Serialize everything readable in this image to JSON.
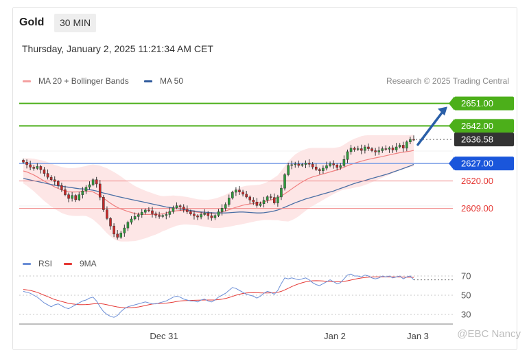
{
  "header": {
    "symbol": "Gold",
    "timeframe": "30 MIN",
    "datetime": "Thursday, January 2, 2025 11:21:34 AM CET"
  },
  "credit": "Research © 2025 Trading Central",
  "watermark": "@EBC Nancy",
  "colors": {
    "bollinger": "#f4a6a6",
    "ma20": "#f08080",
    "ma50": "#4a6fa5",
    "green": "#4caf1a",
    "blue": "#1a56db",
    "red": "#e53935",
    "current": "#333333",
    "rsi": "#6b8ed6",
    "ma9": "#e53935",
    "arrow": "#2a5fa8"
  },
  "chart_data": [
    {
      "type": "line",
      "subtype": "candlestick",
      "legend": [
        "MA 20 + Bollinger Bands",
        "MA 50"
      ],
      "x_tick_labels": [
        "Dec 31",
        "Jan 2",
        "Jan 3"
      ],
      "levels": [
        {
          "value": 2651.0,
          "label": "2651.00",
          "style": "green-filled"
        },
        {
          "value": 2642.0,
          "label": "2642.00",
          "style": "green-filled"
        },
        {
          "value": 2636.58,
          "label": "2636.58",
          "style": "current"
        },
        {
          "value": 2627.0,
          "label": "2627.00",
          "style": "blue-filled"
        },
        {
          "value": 2620.0,
          "label": "2620.00",
          "style": "red-text"
        },
        {
          "value": 2609.0,
          "label": "2609.00",
          "style": "red-text"
        }
      ],
      "ylim": [
        2593,
        2655
      ],
      "close": [
        2627.5,
        2626.5,
        2625.5,
        2625,
        2625.8,
        2624.5,
        2623,
        2621.5,
        2620.5,
        2619.8,
        2618.2,
        2616.5,
        2614.5,
        2613,
        2614.2,
        2612.5,
        2614.5,
        2616,
        2617.5,
        2618.5,
        2620.5,
        2618.8,
        2613.5,
        2608.5,
        2605,
        2602,
        2598.8,
        2597.5,
        2599.2,
        2601.2,
        2603.5,
        2604.8,
        2605.8,
        2606.5,
        2607.5,
        2608.4,
        2608.1,
        2606.9,
        2606.3,
        2605.8,
        2606.2,
        2606.6,
        2607.8,
        2609.3,
        2610.1,
        2609.6,
        2608.6,
        2607.7,
        2606.8,
        2606.1,
        2605.6,
        2606.6,
        2607.1,
        2606.1,
        2605.3,
        2606.2,
        2607.7,
        2609.1,
        2610.6,
        2613.2,
        2615.5,
        2616.4,
        2615.6,
        2614.7,
        2613.6,
        2612.4,
        2611.6,
        2610.2,
        2610.9,
        2612.3,
        2613.7,
        2613.4,
        2611.2,
        2613.6,
        2617.1,
        2622.5,
        2626.2,
        2626.5,
        2626.8,
        2626.2,
        2626.6,
        2627.1,
        2626.7,
        2625.6,
        2624.6,
        2624.1,
        2625.1,
        2626.1,
        2626.9,
        2626.4,
        2625.4,
        2626.1,
        2628.6,
        2631.7,
        2633.1,
        2632.6,
        2632.9,
        2632.2,
        2633.6,
        2632.9,
        2632.1,
        2631.6,
        2632.1,
        2632.9,
        2632.7,
        2633.2,
        2632.4,
        2633.6,
        2634.3,
        2633.1,
        2635.6,
        2636.6,
        2636.58
      ],
      "ma20": [
        2624,
        2623.6,
        2623,
        2622.4,
        2621.6,
        2620.8,
        2620,
        2619.2,
        2618.4,
        2617.6,
        2617,
        2616.4,
        2616,
        2615.7,
        2615.6,
        2615.6,
        2615.7,
        2615.9,
        2616,
        2615.9,
        2615.6,
        2614.9,
        2614.1,
        2613.1,
        2612.1,
        2611.1,
        2610.2,
        2609.4,
        2608.8,
        2608.3,
        2607.8,
        2607.4,
        2607,
        2606.8,
        2606.7,
        2606.6,
        2606.6,
        2606.6,
        2606.6,
        2606.7,
        2606.9,
        2607.2,
        2607.6,
        2607.9,
        2608.1,
        2608.2,
        2608.2,
        2608.1,
        2607.9,
        2607.7,
        2607.5,
        2607.3,
        2607.1,
        2607,
        2607,
        2607.1,
        2607.3,
        2607.6,
        2608,
        2608.5,
        2609,
        2609.5,
        2609.9,
        2610.3,
        2610.6,
        2610.8,
        2611,
        2611.2,
        2611.4,
        2611.7,
        2612,
        2612.4,
        2612.8,
        2613.3,
        2614,
        2614.9,
        2615.8,
        2616.8,
        2617.8,
        2618.7,
        2619.6,
        2620.4,
        2621.1,
        2621.6,
        2622,
        2622.4,
        2622.8,
        2623.2,
        2623.6,
        2624,
        2624.4,
        2624.9,
        2625.5,
        2626.1,
        2626.6,
        2627.1,
        2627.5,
        2627.9,
        2628.3,
        2628.6,
        2628.9,
        2629.2,
        2629.5,
        2629.8,
        2630.1,
        2630.4,
        2630.7,
        2631,
        2631.3,
        2631.5,
        2631.7,
        2631.9,
        2632.2
      ],
      "ma50": [
        2621,
        2620.7,
        2620.4,
        2620.1,
        2619.8,
        2619.5,
        2619.2,
        2618.9,
        2618.6,
        2618.3,
        2618.1,
        2617.9,
        2617.7,
        2617.5,
        2617.3,
        2617.1,
        2616.9,
        2616.8,
        2616.7,
        2616.5,
        2616.3,
        2616,
        2615.6,
        2615.2,
        2614.9,
        2614.5,
        2614.2,
        2613.8,
        2613.5,
        2613.2,
        2612.9,
        2612.6,
        2612.3,
        2612,
        2611.7,
        2611.4,
        2611.1,
        2610.8,
        2610.5,
        2610.2,
        2609.9,
        2609.6,
        2609.4,
        2609.2,
        2609,
        2608.8,
        2608.6,
        2608.4,
        2608.2,
        2608,
        2607.8,
        2607.6,
        2607.5,
        2607.4,
        2607.3,
        2607.2,
        2607.2,
        2607.2,
        2607.2,
        2607.3,
        2607.4,
        2607.5,
        2607.6,
        2607.6,
        2607.5,
        2607.4,
        2607.3,
        2607.2,
        2607.2,
        2607.3,
        2607.5,
        2607.7,
        2608,
        2608.4,
        2608.9,
        2609.5,
        2610.1,
        2610.7,
        2611.3,
        2611.8,
        2612.3,
        2612.8,
        2613.2,
        2613.6,
        2614,
        2614.4,
        2614.8,
        2615.2,
        2615.6,
        2616,
        2616.5,
        2617,
        2617.5,
        2618,
        2618.5,
        2619,
        2619.4,
        2619.8,
        2620.2,
        2620.6,
        2621,
        2621.4,
        2621.8,
        2622.2,
        2622.6,
        2623,
        2623.5,
        2624,
        2624.5,
        2625,
        2625.5,
        2626,
        2626.6
      ],
      "bb_width": [
        5,
        5.5,
        6,
        6.5,
        7,
        7.5,
        8,
        8.3,
        8.6,
        8.8,
        9,
        9.2,
        9.3,
        9.4,
        9.5,
        9.6,
        9.7,
        9.8,
        10,
        10.5,
        11,
        11.5,
        12,
        12.5,
        13,
        13.2,
        13.4,
        13.3,
        13,
        12.5,
        12,
        11.5,
        11,
        10.5,
        10,
        9.5,
        9,
        8.5,
        8,
        7.5,
        7,
        6.8,
        6.5,
        6.3,
        6,
        5.8,
        5.6,
        5.5,
        5.4,
        5.3,
        5.2,
        5.3,
        5.4,
        5.5,
        5.7,
        5.9,
        6.1,
        6.3,
        6.5,
        6.8,
        7,
        7.2,
        7.4,
        7.5,
        7.5,
        7.4,
        7.3,
        7.2,
        7.2,
        7.3,
        7.6,
        8,
        8.5,
        9,
        10,
        11,
        12,
        12.5,
        12.8,
        12.8,
        12.6,
        12.3,
        12,
        11.6,
        11.2,
        10.8,
        10.4,
        10,
        9.6,
        9.2,
        9,
        8.8,
        9,
        9.3,
        9.6,
        9.8,
        9.9,
        10,
        9.9,
        9.7,
        9.4,
        9.1,
        8.8,
        8.5,
        8.2,
        7.9,
        7.6,
        7.3,
        7,
        6.8,
        6.6,
        6.4,
        6.3
      ]
    },
    {
      "type": "line",
      "legend": [
        "RSI",
        "9MA"
      ],
      "ylim": [
        25,
        75
      ],
      "y_ticks": [
        70,
        50,
        30
      ],
      "rsi": [
        54,
        53,
        52,
        50,
        48,
        45,
        42,
        40,
        38,
        40,
        41,
        39,
        37,
        36,
        38,
        40,
        42,
        44,
        45,
        47,
        48,
        44,
        38,
        33,
        30,
        28,
        27,
        29,
        33,
        36,
        38,
        39,
        40,
        41,
        42,
        43,
        42,
        41,
        41,
        42,
        43,
        44,
        46,
        48,
        49,
        48,
        46,
        45,
        44,
        44,
        43,
        45,
        46,
        44,
        43,
        45,
        48,
        50,
        52,
        55,
        58,
        57,
        55,
        53,
        51,
        50,
        49,
        47,
        49,
        52,
        54,
        53,
        51,
        55,
        62,
        68,
        67,
        68,
        67,
        66,
        67,
        68,
        66,
        63,
        61,
        60,
        62,
        64,
        66,
        64,
        62,
        63,
        67,
        71,
        72,
        70,
        70,
        69,
        71,
        70,
        68,
        67,
        68,
        70,
        69,
        70,
        68,
        69,
        70,
        67,
        69,
        70,
        66
      ],
      "ma9": [
        56,
        55.5,
        55,
        54,
        53,
        51.5,
        50,
        48.5,
        47,
        45.5,
        44.5,
        43.5,
        42.5,
        41.5,
        41,
        40.5,
        40.2,
        40.2,
        40.3,
        40.6,
        41,
        41.3,
        41.2,
        40.8,
        40.1,
        39.3,
        38.5,
        37.8,
        37.3,
        37,
        36.9,
        37,
        37.3,
        37.8,
        38.5,
        39.3,
        40.1,
        40.8,
        41.2,
        41.4,
        41.6,
        41.8,
        42.2,
        42.8,
        43.5,
        44,
        44.3,
        44.5,
        44.6,
        44.7,
        44.8,
        44.9,
        45,
        45,
        45,
        45.1,
        45.4,
        45.9,
        46.6,
        47.6,
        48.8,
        50,
        51,
        51.8,
        52.3,
        52.6,
        52.7,
        52.6,
        52.4,
        52.3,
        52.3,
        52.4,
        52.6,
        53,
        54,
        55.5,
        57.2,
        59,
        60.5,
        61.8,
        62.9,
        63.9,
        64.6,
        65,
        65.1,
        65,
        64.8,
        64.5,
        64.3,
        64.1,
        64,
        64,
        64.4,
        65,
        65.8,
        66.6,
        67.3,
        67.9,
        68.4,
        68.8,
        69,
        69.1,
        69.1,
        69.1,
        69.1,
        69.1,
        69.1,
        69,
        69,
        68.9,
        68.8,
        68.7,
        68.6
      ]
    }
  ]
}
